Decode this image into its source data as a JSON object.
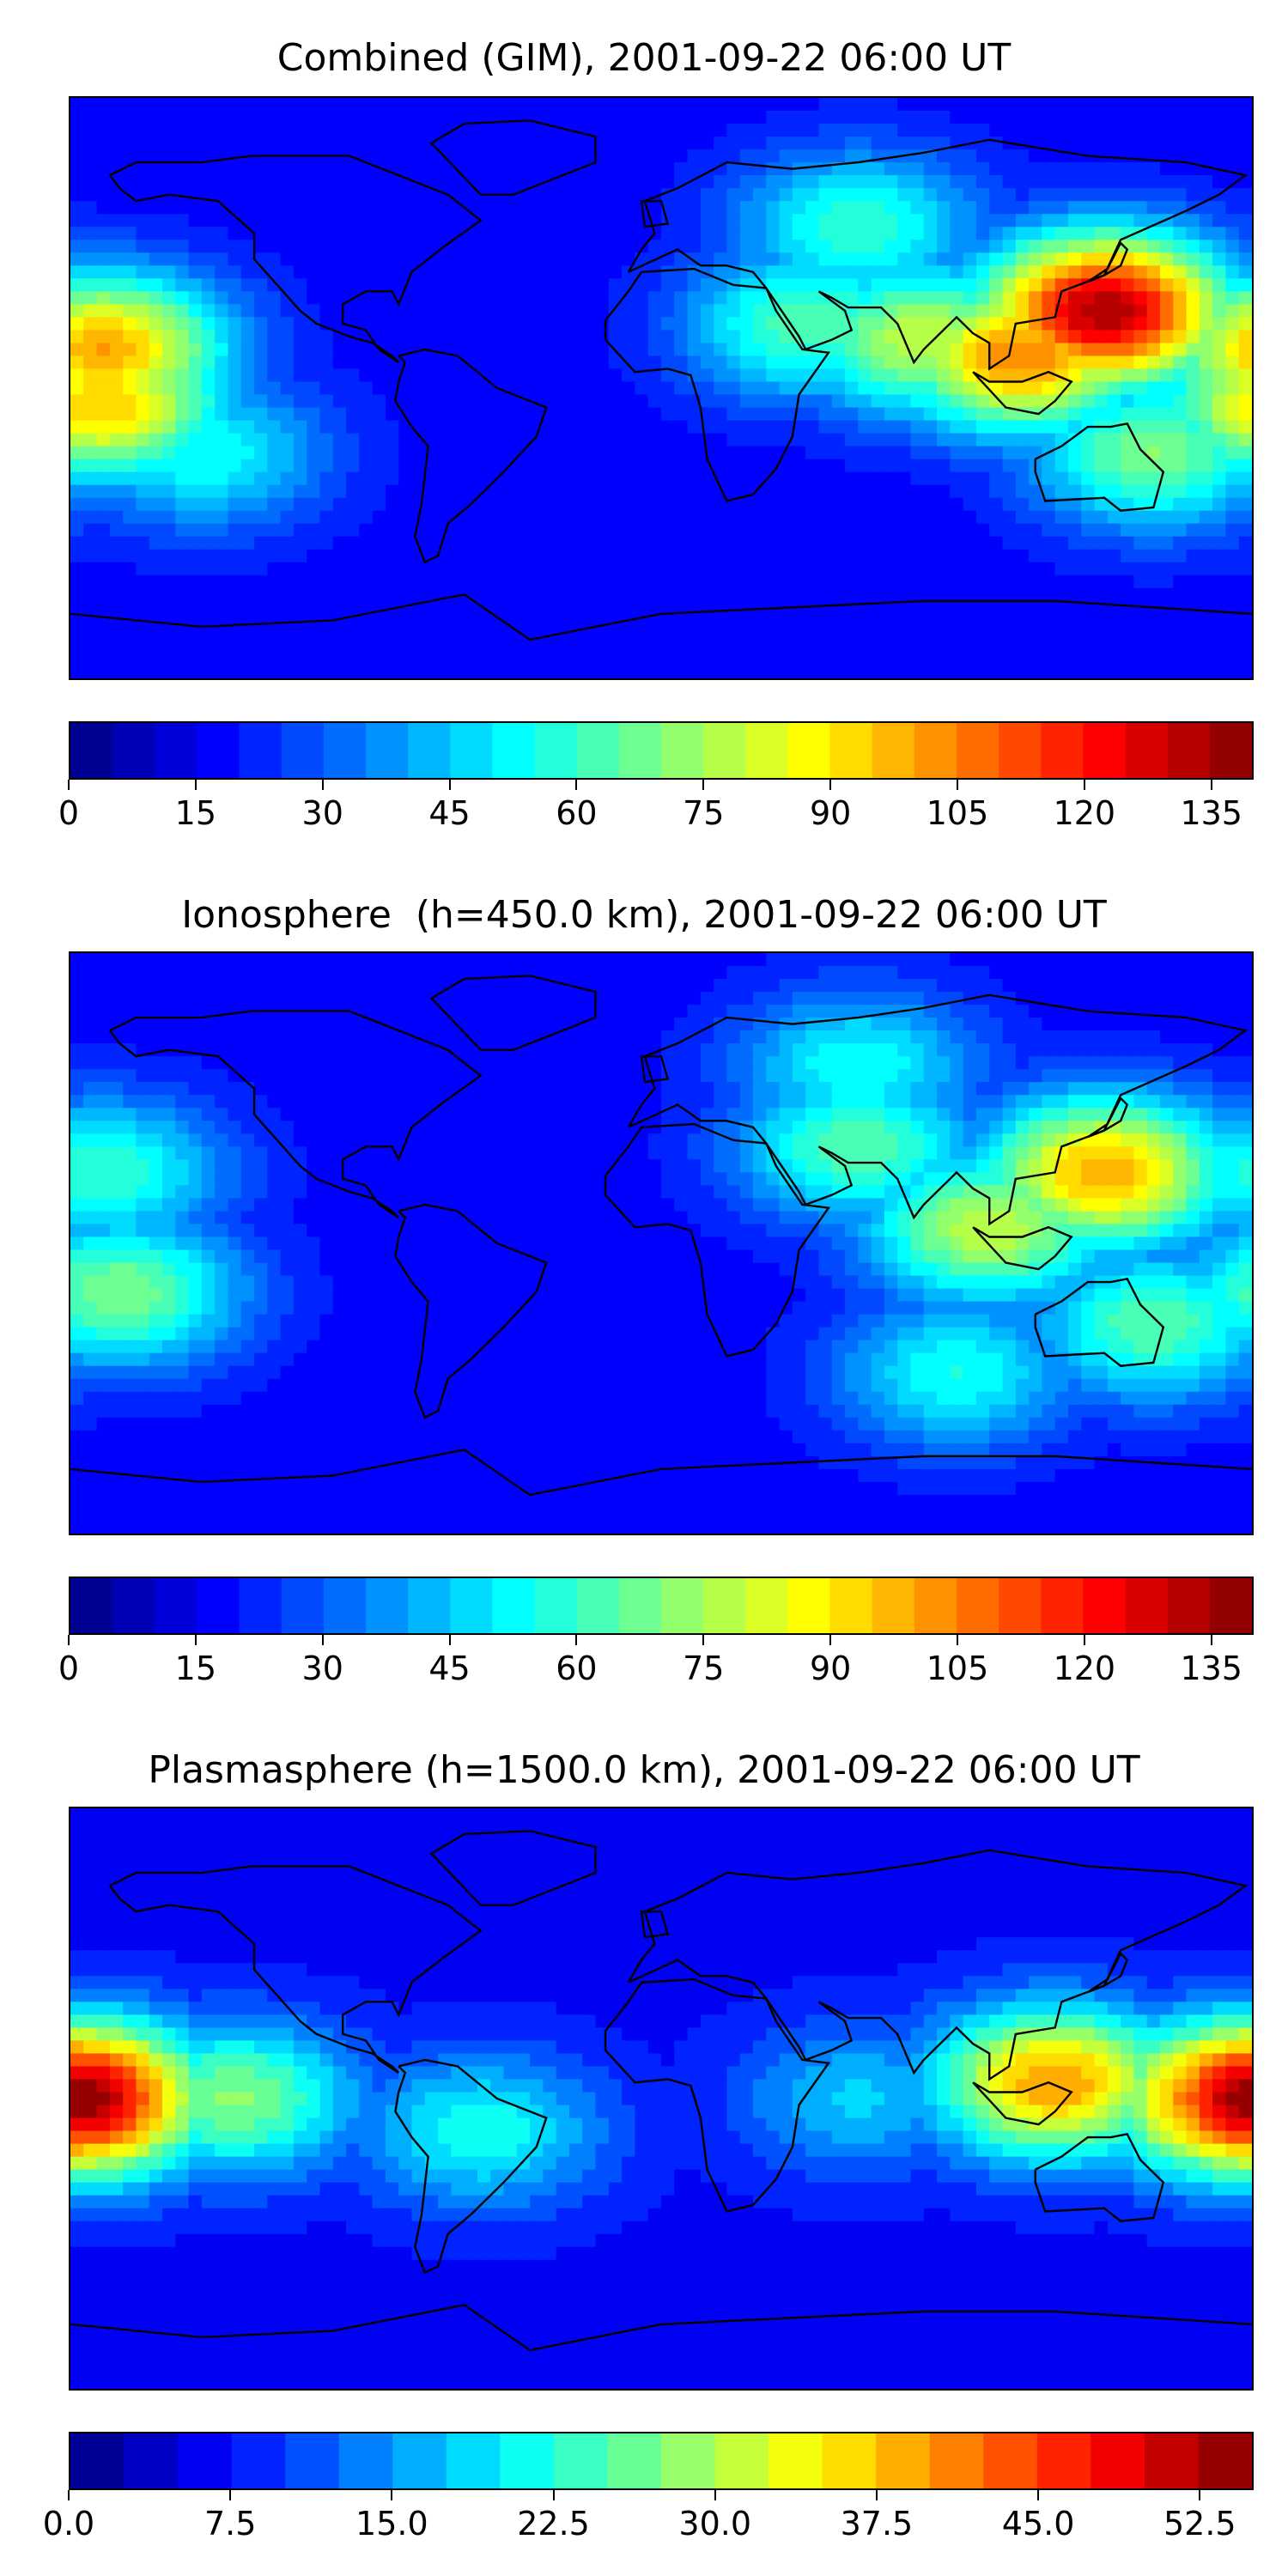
{
  "panels": [
    {
      "id": "combined",
      "title": "Combined (GIM), 2001-09-22 06:00 UT",
      "colorbar": {
        "min": 0,
        "max": 140,
        "levels": 28,
        "ticks": [
          "0",
          "15",
          "30",
          "45",
          "60",
          "75",
          "90",
          "105",
          "120",
          "135"
        ],
        "tick_values": [
          0,
          15,
          30,
          45,
          60,
          75,
          90,
          105,
          120,
          135
        ]
      },
      "blobs": [
        {
          "lon": 135,
          "lat": 24,
          "value": 135
        },
        {
          "lon": 110,
          "lat": 10,
          "value": 105
        },
        {
          "lon": 80,
          "lat": 15,
          "value": 80
        },
        {
          "lon": -170,
          "lat": 12,
          "value": 100
        },
        {
          "lon": -170,
          "lat": -5,
          "value": 95
        },
        {
          "lon": 45,
          "lat": 20,
          "value": 65
        },
        {
          "lon": 60,
          "lat": 50,
          "value": 60
        },
        {
          "lon": 150,
          "lat": -20,
          "value": 70
        },
        {
          "lon": -140,
          "lat": -20,
          "value": 55
        }
      ]
    },
    {
      "id": "ionosphere",
      "title": "Ionosphere  (h=450.0 km), 2001-09-22 06:00 UT",
      "colorbar": {
        "min": 0,
        "max": 140,
        "levels": 28,
        "ticks": [
          "0",
          "15",
          "30",
          "45",
          "60",
          "75",
          "90",
          "105",
          "120",
          "135"
        ],
        "tick_values": [
          0,
          15,
          30,
          45,
          60,
          75,
          90,
          105,
          120,
          135
        ]
      },
      "blobs": [
        {
          "lon": 135,
          "lat": 22,
          "value": 100
        },
        {
          "lon": 100,
          "lat": 5,
          "value": 80
        },
        {
          "lon": 60,
          "lat": 30,
          "value": 65
        },
        {
          "lon": 60,
          "lat": 55,
          "value": 55
        },
        {
          "lon": -170,
          "lat": 22,
          "value": 60
        },
        {
          "lon": -165,
          "lat": -15,
          "value": 70
        },
        {
          "lon": 150,
          "lat": -25,
          "value": 65
        },
        {
          "lon": 90,
          "lat": -40,
          "value": 55
        }
      ]
    },
    {
      "id": "plasmasphere",
      "title": "Plasmasphere (h=1500.0 km), 2001-09-22 06:00 UT",
      "colorbar": {
        "min": 0,
        "max": 55,
        "levels": 22,
        "ticks": [
          "0.0",
          "7.5",
          "15.0",
          "22.5",
          "30.0",
          "37.5",
          "45.0",
          "52.5"
        ],
        "tick_values": [
          0,
          7.5,
          15,
          22.5,
          30,
          37.5,
          45,
          52.5
        ]
      },
      "blobs": [
        {
          "lon": -178,
          "lat": 0,
          "value": 55
        },
        {
          "lon": -130,
          "lat": 0,
          "value": 28
        },
        {
          "lon": -55,
          "lat": -10,
          "value": 22
        },
        {
          "lon": 120,
          "lat": 5,
          "value": 40
        },
        {
          "lon": 175,
          "lat": 0,
          "value": 48
        },
        {
          "lon": 60,
          "lat": 0,
          "value": 18
        }
      ]
    }
  ],
  "colormap": "jet"
}
